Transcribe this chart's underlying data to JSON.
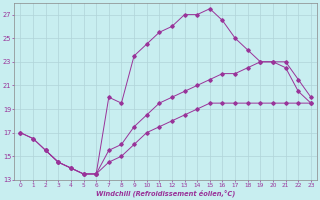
{
  "xlabel": "Windchill (Refroidissement éolien,°C)",
  "bg_color": "#c8eef0",
  "line_color": "#993399",
  "grid_color": "#b0d4d8",
  "xlim": [
    -0.5,
    23.5
  ],
  "ylim": [
    13,
    28
  ],
  "xticks": [
    0,
    1,
    2,
    3,
    4,
    5,
    6,
    7,
    8,
    9,
    10,
    11,
    12,
    13,
    14,
    15,
    16,
    17,
    18,
    19,
    20,
    21,
    22,
    23
  ],
  "yticks": [
    13,
    15,
    17,
    19,
    21,
    23,
    25,
    27
  ],
  "line1_x": [
    0,
    1,
    2,
    3,
    4,
    5,
    6,
    7,
    8,
    9,
    10,
    11,
    12,
    13,
    14,
    15,
    16,
    17,
    18,
    19,
    20,
    21,
    22,
    23
  ],
  "line1_y": [
    17,
    16.5,
    15.5,
    14.5,
    14.0,
    13.5,
    13.5,
    20.0,
    19.5,
    23.5,
    24.5,
    25.5,
    26.0,
    27.0,
    27.0,
    27.5,
    26.5,
    25.0,
    24.0,
    23.0,
    23.0,
    22.5,
    20.5,
    19.5
  ],
  "line2_x": [
    0,
    1,
    2,
    3,
    4,
    5,
    6,
    7,
    8,
    9,
    10,
    11,
    12,
    13,
    14,
    15,
    16,
    17,
    18,
    19,
    20,
    21,
    22,
    23
  ],
  "line2_y": [
    17.0,
    16.5,
    15.5,
    14.5,
    14.0,
    13.5,
    13.5,
    15.5,
    16.0,
    17.5,
    18.5,
    19.5,
    20.0,
    20.5,
    21.0,
    21.5,
    22.0,
    22.0,
    22.5,
    23.0,
    23.0,
    23.0,
    21.5,
    20.0
  ],
  "line3_x": [
    2,
    3,
    4,
    5,
    6,
    7,
    8,
    9,
    10,
    11,
    12,
    13,
    14,
    15,
    16,
    17,
    18,
    19,
    20,
    21,
    22,
    23
  ],
  "line3_y": [
    15.5,
    14.5,
    14.0,
    13.5,
    13.5,
    14.5,
    15.0,
    16.0,
    17.0,
    17.5,
    18.0,
    18.5,
    19.0,
    19.5,
    19.5,
    19.5,
    19.5,
    19.5,
    19.5,
    19.5,
    19.5,
    19.5
  ]
}
